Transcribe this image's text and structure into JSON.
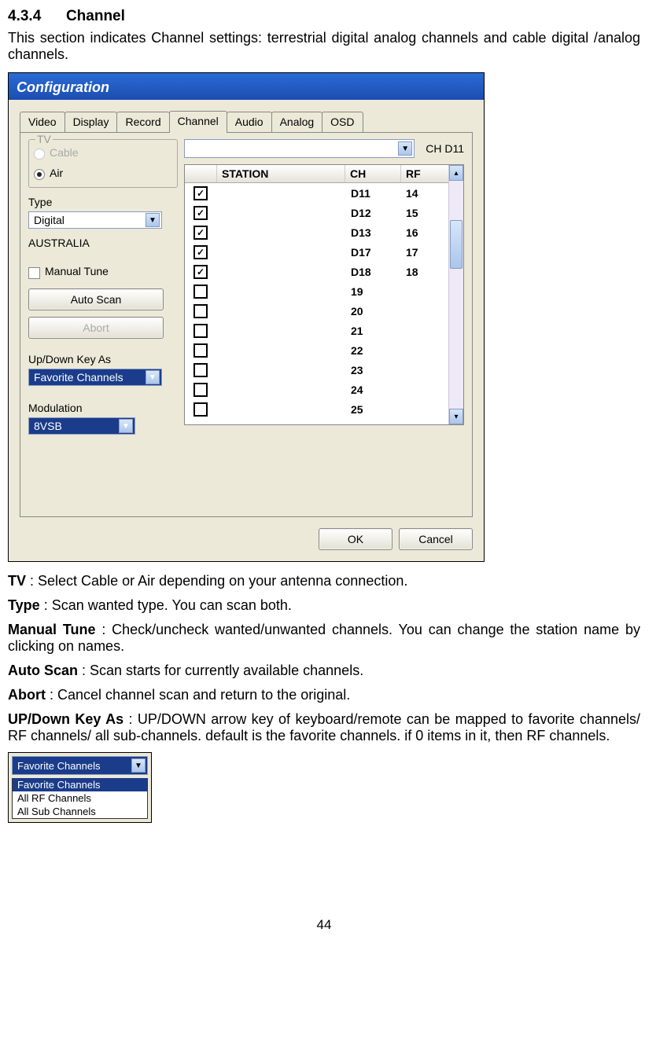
{
  "section_number": "4.3.4",
  "section_title": "Channel",
  "intro": "This section indicates Channel settings: terrestrial digital analog channels and cable digital /analog channels.",
  "window": {
    "title": "Configuration",
    "tabs": [
      "Video",
      "Display",
      "Record",
      "Channel",
      "Audio",
      "Analog",
      "OSD"
    ],
    "active_tab": "Channel",
    "tv_group_label": "TV",
    "tv_cable": "Cable",
    "tv_air": "Air",
    "tv_selected": "Air",
    "type_label": "Type",
    "type_value": "Digital",
    "country": "AUSTRALIA",
    "manual_tune": "Manual Tune",
    "auto_scan": "Auto Scan",
    "abort": "Abort",
    "updown_label": "Up/Down Key As",
    "updown_value": "Favorite Channels",
    "modulation_label": "Modulation",
    "modulation_value": "8VSB",
    "current_ch": "CH D11",
    "table_headers": {
      "station": "STATION",
      "ch": "CH",
      "rf": "RF"
    },
    "rows": [
      {
        "checked": true,
        "station": "",
        "ch": "D11",
        "rf": "14"
      },
      {
        "checked": true,
        "station": "",
        "ch": "D12",
        "rf": "15"
      },
      {
        "checked": true,
        "station": "",
        "ch": "D13",
        "rf": "16"
      },
      {
        "checked": true,
        "station": "",
        "ch": "D17",
        "rf": "17"
      },
      {
        "checked": true,
        "station": "",
        "ch": "D18",
        "rf": "18"
      },
      {
        "checked": false,
        "station": "",
        "ch": "19",
        "rf": ""
      },
      {
        "checked": false,
        "station": "",
        "ch": "20",
        "rf": ""
      },
      {
        "checked": false,
        "station": "",
        "ch": "21",
        "rf": ""
      },
      {
        "checked": false,
        "station": "",
        "ch": "22",
        "rf": ""
      },
      {
        "checked": false,
        "station": "",
        "ch": "23",
        "rf": ""
      },
      {
        "checked": false,
        "station": "",
        "ch": "24",
        "rf": ""
      },
      {
        "checked": false,
        "station": "",
        "ch": "25",
        "rf": ""
      }
    ],
    "ok": "OK",
    "cancel": "Cancel"
  },
  "descriptions": {
    "tv": {
      "label": "TV",
      "text": " : Select Cable or Air depending on your antenna connection."
    },
    "type": {
      "label": "Type",
      "text": " : Scan wanted type. You can scan both."
    },
    "manual_tune": {
      "label": "Manual Tune",
      "text": " : Check/uncheck wanted/unwanted channels. You can change the station name by clicking on names."
    },
    "auto_scan": {
      "label": "Auto Scan",
      "text": " : Scan starts for currently available channels."
    },
    "abort": {
      "label": "Abort",
      "text": " : Cancel channel scan and return to the original."
    },
    "updown": {
      "label": "UP/Down Key As",
      "text": " : UP/DOWN arrow key of keyboard/remote can be mapped to favorite channels/ RF channels/ all sub-channels. default is the favorite channels. if 0 items in it, then RF channels."
    }
  },
  "dropdown": {
    "value": "Favorite Channels",
    "items": [
      "Favorite Channels",
      "All RF Channels",
      "All Sub Channels"
    ],
    "selected": "Favorite Channels"
  },
  "page_number": "44"
}
